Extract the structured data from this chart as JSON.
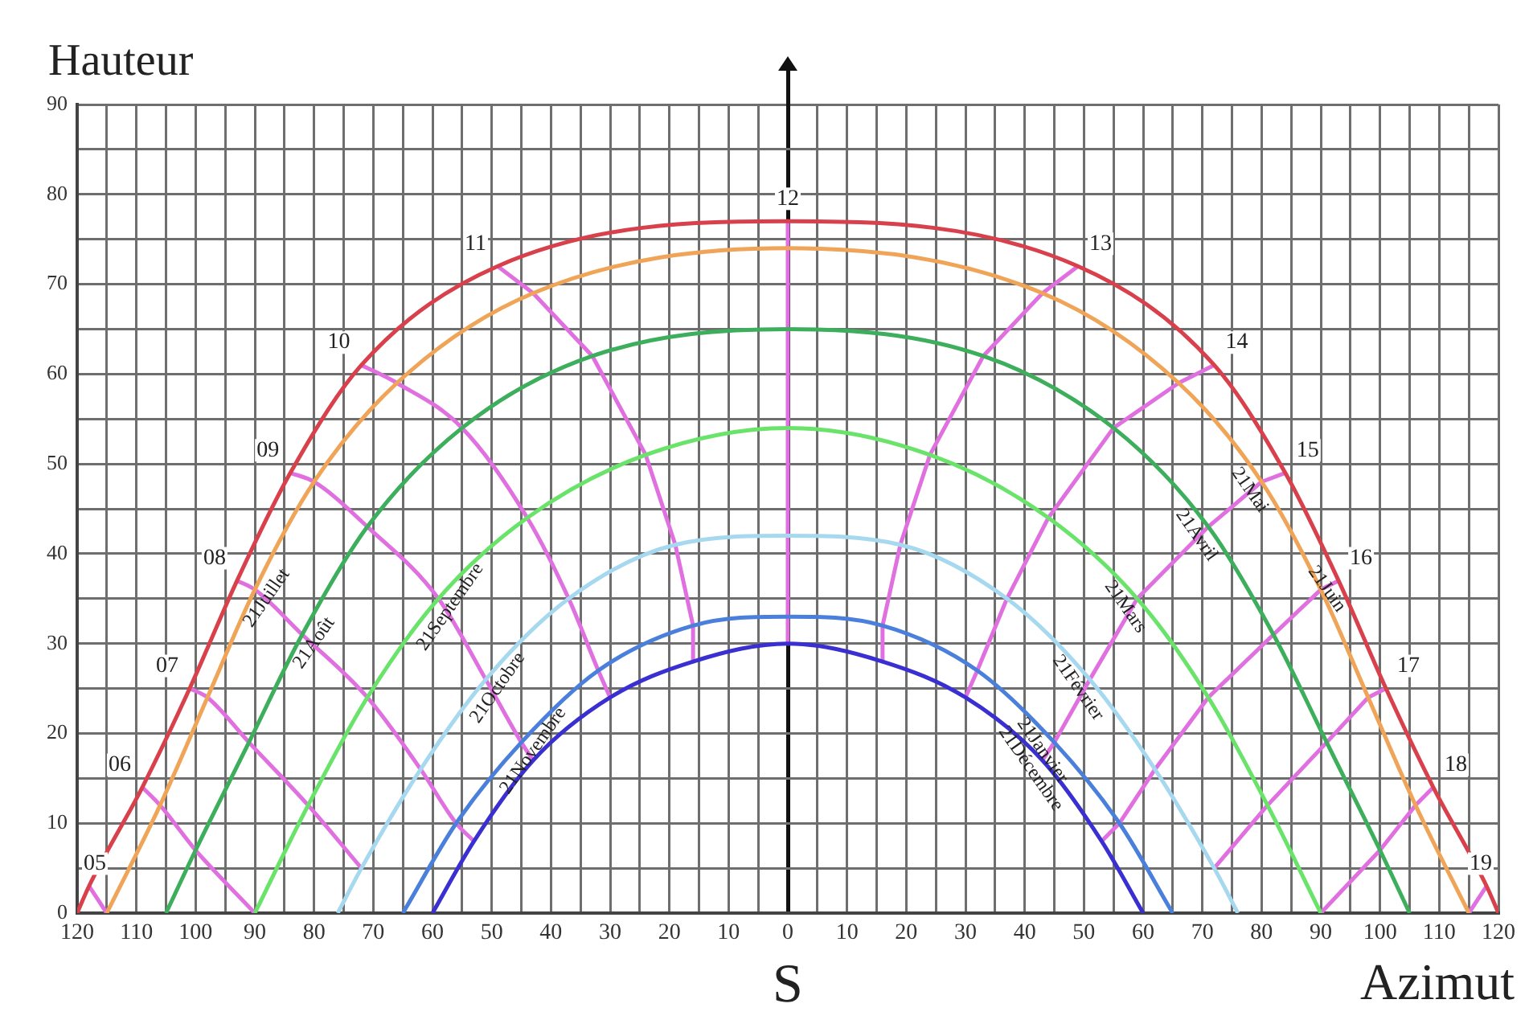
{
  "chart_data": {
    "type": "line",
    "xlabel": "Azimut",
    "ylabel": "Hauteur",
    "grid": true,
    "marker": "none",
    "xlim": [
      -120,
      120
    ],
    "ylim": [
      0,
      90
    ],
    "xticks": [
      {
        "value": -120,
        "label": "120"
      },
      {
        "value": -115,
        "label": null
      },
      {
        "value": -110,
        "label": "110"
      },
      {
        "value": -105,
        "label": null
      },
      {
        "value": -100,
        "label": "100"
      },
      {
        "value": -95,
        "label": null
      },
      {
        "value": -90,
        "label": "90"
      },
      {
        "value": -85,
        "label": null
      },
      {
        "value": -80,
        "label": "80"
      },
      {
        "value": -75,
        "label": null
      },
      {
        "value": -70,
        "label": "70"
      },
      {
        "value": -65,
        "label": null
      },
      {
        "value": -60,
        "label": "60"
      },
      {
        "value": -55,
        "label": null
      },
      {
        "value": -50,
        "label": "50"
      },
      {
        "value": -45,
        "label": null
      },
      {
        "value": -40,
        "label": "40"
      },
      {
        "value": -35,
        "label": null
      },
      {
        "value": -30,
        "label": "30"
      },
      {
        "value": -25,
        "label": null
      },
      {
        "value": -20,
        "label": "20"
      },
      {
        "value": -15,
        "label": null
      },
      {
        "value": -10,
        "label": "10"
      },
      {
        "value": -5,
        "label": null
      },
      0,
      {
        "value": 5,
        "label": null
      },
      10,
      {
        "value": 15,
        "label": null
      },
      20,
      {
        "value": 25,
        "label": null
      },
      30,
      {
        "value": 35,
        "label": null
      },
      40,
      {
        "value": 45,
        "label": null
      },
      50,
      {
        "value": 55,
        "label": null
      },
      60,
      {
        "value": 65,
        "label": null
      },
      70,
      {
        "value": 75,
        "label": null
      },
      80,
      {
        "value": 85,
        "label": null
      },
      90,
      {
        "value": 95,
        "label": null
      },
      100,
      {
        "value": 105,
        "label": null
      },
      110,
      {
        "value": 115,
        "label": null
      },
      120
    ],
    "yticks": [
      0,
      {
        "value": 5,
        "label": null
      },
      10,
      {
        "value": 15,
        "label": null
      },
      20,
      {
        "value": 25,
        "label": null
      },
      30,
      {
        "value": 35,
        "label": null
      },
      40,
      {
        "value": 45,
        "label": null
      },
      50,
      {
        "value": 55,
        "label": null
      },
      60,
      {
        "value": 65,
        "label": null
      },
      70,
      {
        "value": 75,
        "label": null
      },
      80,
      {
        "value": 85,
        "label": null
      },
      90
    ],
    "series": [
      {
        "color": "#d8404c",
        "x": [
          -120,
          -118,
          -109,
          -101,
          -93,
          -84,
          -72,
          -49,
          0,
          49,
          72,
          84,
          93,
          101,
          109,
          118,
          120
        ],
        "values": [
          0,
          3,
          14,
          25,
          37,
          49,
          61,
          72,
          77,
          72,
          61,
          49,
          37,
          25,
          14,
          3,
          0
        ]
      },
      {
        "color": "#f0a458",
        "x": [
          -115,
          -106,
          -98,
          -90,
          -80,
          -66,
          -43,
          0,
          43,
          66,
          80,
          90,
          98,
          106,
          115
        ],
        "values": [
          0,
          12,
          24,
          36,
          48,
          59,
          69,
          74,
          69,
          59,
          48,
          36,
          24,
          12,
          0
        ]
      },
      {
        "color": "#3cae5c",
        "x": [
          -105,
          -100,
          -91,
          -82,
          -71,
          -55,
          -33,
          0,
          33,
          55,
          71,
          82,
          91,
          100,
          105
        ],
        "values": [
          0,
          7,
          19,
          31,
          43,
          54,
          62,
          65,
          62,
          54,
          43,
          31,
          19,
          7,
          0
        ]
      },
      {
        "color": "#6ae36a",
        "x": [
          -90,
          -81,
          -71,
          -59,
          -44,
          -24,
          0,
          24,
          44,
          59,
          71,
          81,
          90
        ],
        "values": [
          0,
          12,
          24,
          35,
          44,
          51,
          54,
          51,
          44,
          35,
          24,
          12,
          0
        ]
      },
      {
        "color": "#a6d8ef",
        "x": [
          -76,
          -72,
          -62,
          -51,
          -37,
          -19,
          0,
          19,
          37,
          51,
          62,
          72,
          76
        ],
        "values": [
          0,
          5,
          16,
          26,
          35,
          41,
          42,
          41,
          35,
          26,
          16,
          5,
          0
        ]
      },
      {
        "color": "#4a80dc",
        "x": [
          -65,
          -56,
          -45,
          -32,
          -16,
          0,
          16,
          32,
          45,
          56,
          65
        ],
        "values": [
          0,
          10,
          19,
          27,
          32,
          33,
          32,
          27,
          19,
          10,
          0
        ]
      },
      {
        "color": "#3a2fd0",
        "x": [
          -60,
          -53,
          -43,
          -30,
          -16,
          0,
          16,
          30,
          43,
          53,
          60
        ],
        "values": [
          0,
          8,
          17,
          24,
          28,
          30,
          28,
          24,
          17,
          8,
          0
        ]
      },
      {
        "color": "#e070e0",
        "x": [
          -118,
          -115
        ],
        "values": [
          3,
          0
        ]
      },
      {
        "color": "#e070e0",
        "x": [
          -109,
          -106,
          -100,
          -90
        ],
        "values": [
          14,
          12,
          7,
          0
        ]
      },
      {
        "color": "#e070e0",
        "x": [
          -101,
          -98,
          -91,
          -81,
          -72
        ],
        "values": [
          25,
          24,
          19,
          12,
          5
        ]
      },
      {
        "color": "#e070e0",
        "x": [
          -93,
          -90,
          -82,
          -71,
          -62,
          -56,
          -53
        ],
        "values": [
          37,
          36,
          31,
          24,
          16,
          10,
          8
        ]
      },
      {
        "color": "#e070e0",
        "x": [
          -84,
          -80,
          -71,
          -59,
          -51,
          -45,
          -43
        ],
        "values": [
          49,
          48,
          43,
          35,
          26,
          19,
          17
        ]
      },
      {
        "color": "#e070e0",
        "x": [
          -72,
          -66,
          -55,
          -44,
          -37,
          -32,
          -30
        ],
        "values": [
          61,
          59,
          54,
          44,
          35,
          27,
          24
        ]
      },
      {
        "color": "#e070e0",
        "x": [
          -49,
          -43,
          -33,
          -24,
          -19,
          -16,
          -16
        ],
        "values": [
          72,
          69,
          62,
          51,
          41,
          32,
          28
        ]
      },
      {
        "color": "#e070e0",
        "x": [
          0,
          0
        ],
        "values": [
          77,
          30
        ]
      },
      {
        "color": "#e070e0",
        "x": [
          49,
          43,
          33,
          24,
          19,
          16,
          16
        ],
        "values": [
          72,
          69,
          62,
          51,
          41,
          32,
          28
        ]
      },
      {
        "color": "#e070e0",
        "x": [
          72,
          66,
          55,
          44,
          37,
          32,
          30
        ],
        "values": [
          61,
          59,
          54,
          44,
          35,
          27,
          24
        ]
      },
      {
        "color": "#e070e0",
        "x": [
          84,
          80,
          71,
          59,
          51,
          45,
          43
        ],
        "values": [
          49,
          48,
          43,
          35,
          26,
          19,
          17
        ]
      },
      {
        "color": "#e070e0",
        "x": [
          93,
          90,
          82,
          71,
          62,
          56,
          53
        ],
        "values": [
          37,
          36,
          31,
          24,
          16,
          10,
          8
        ]
      },
      {
        "color": "#e070e0",
        "x": [
          101,
          98,
          91,
          81,
          72
        ],
        "values": [
          25,
          24,
          19,
          12,
          5
        ]
      },
      {
        "color": "#e070e0",
        "x": [
          109,
          106,
          100,
          90
        ],
        "values": [
          14,
          12,
          7,
          0
        ]
      },
      {
        "color": "#e070e0",
        "x": [
          118,
          115
        ],
        "values": [
          3,
          0
        ]
      }
    ],
    "annotations": [
      {
        "text": "05",
        "x": -118,
        "y": 3
      },
      {
        "text": "06",
        "x": -109,
        "y": 14
      },
      {
        "text": "07",
        "x": -101,
        "y": 25
      },
      {
        "text": "08",
        "x": -93,
        "y": 37
      },
      {
        "text": "09",
        "x": -84,
        "y": 49
      },
      {
        "text": "10",
        "x": -72,
        "y": 61
      },
      {
        "text": "11",
        "x": -49,
        "y": 72
      },
      {
        "text": "12",
        "x": 0,
        "y": 77
      },
      {
        "text": "13",
        "x": 49,
        "y": 72
      },
      {
        "text": "14",
        "x": 72,
        "y": 61
      },
      {
        "text": "15",
        "x": 84,
        "y": 49
      },
      {
        "text": "16",
        "x": 93,
        "y": 37
      },
      {
        "text": "17",
        "x": 101,
        "y": 25
      },
      {
        "text": "18",
        "x": 109,
        "y": 14
      },
      {
        "text": "19",
        "x": 118,
        "y": 3
      },
      {
        "text": "21Juillet",
        "x": -90,
        "y": 36
      },
      {
        "text": "21Août",
        "x": -82,
        "y": 31
      },
      {
        "text": "21Septembre",
        "x": -59,
        "y": 35
      },
      {
        "text": "21Octobre",
        "x": -51,
        "y": 26
      },
      {
        "text": "21Novembre",
        "x": -45,
        "y": 19
      },
      {
        "text": "21Juin",
        "x": 93,
        "y": 37
      },
      {
        "text": "21Mai",
        "x": 80,
        "y": 48
      },
      {
        "text": "21Avril",
        "x": 71,
        "y": 43
      },
      {
        "text": "21Mars",
        "x": 59,
        "y": 35
      },
      {
        "text": "21Février",
        "x": 51,
        "y": 26
      },
      {
        "text": "21Janvier",
        "x": 45,
        "y": 19
      },
      {
        "text": "21Décembre",
        "x": 43,
        "y": 17
      },
      {
        "text": "S",
        "x": 0
      }
    ]
  }
}
